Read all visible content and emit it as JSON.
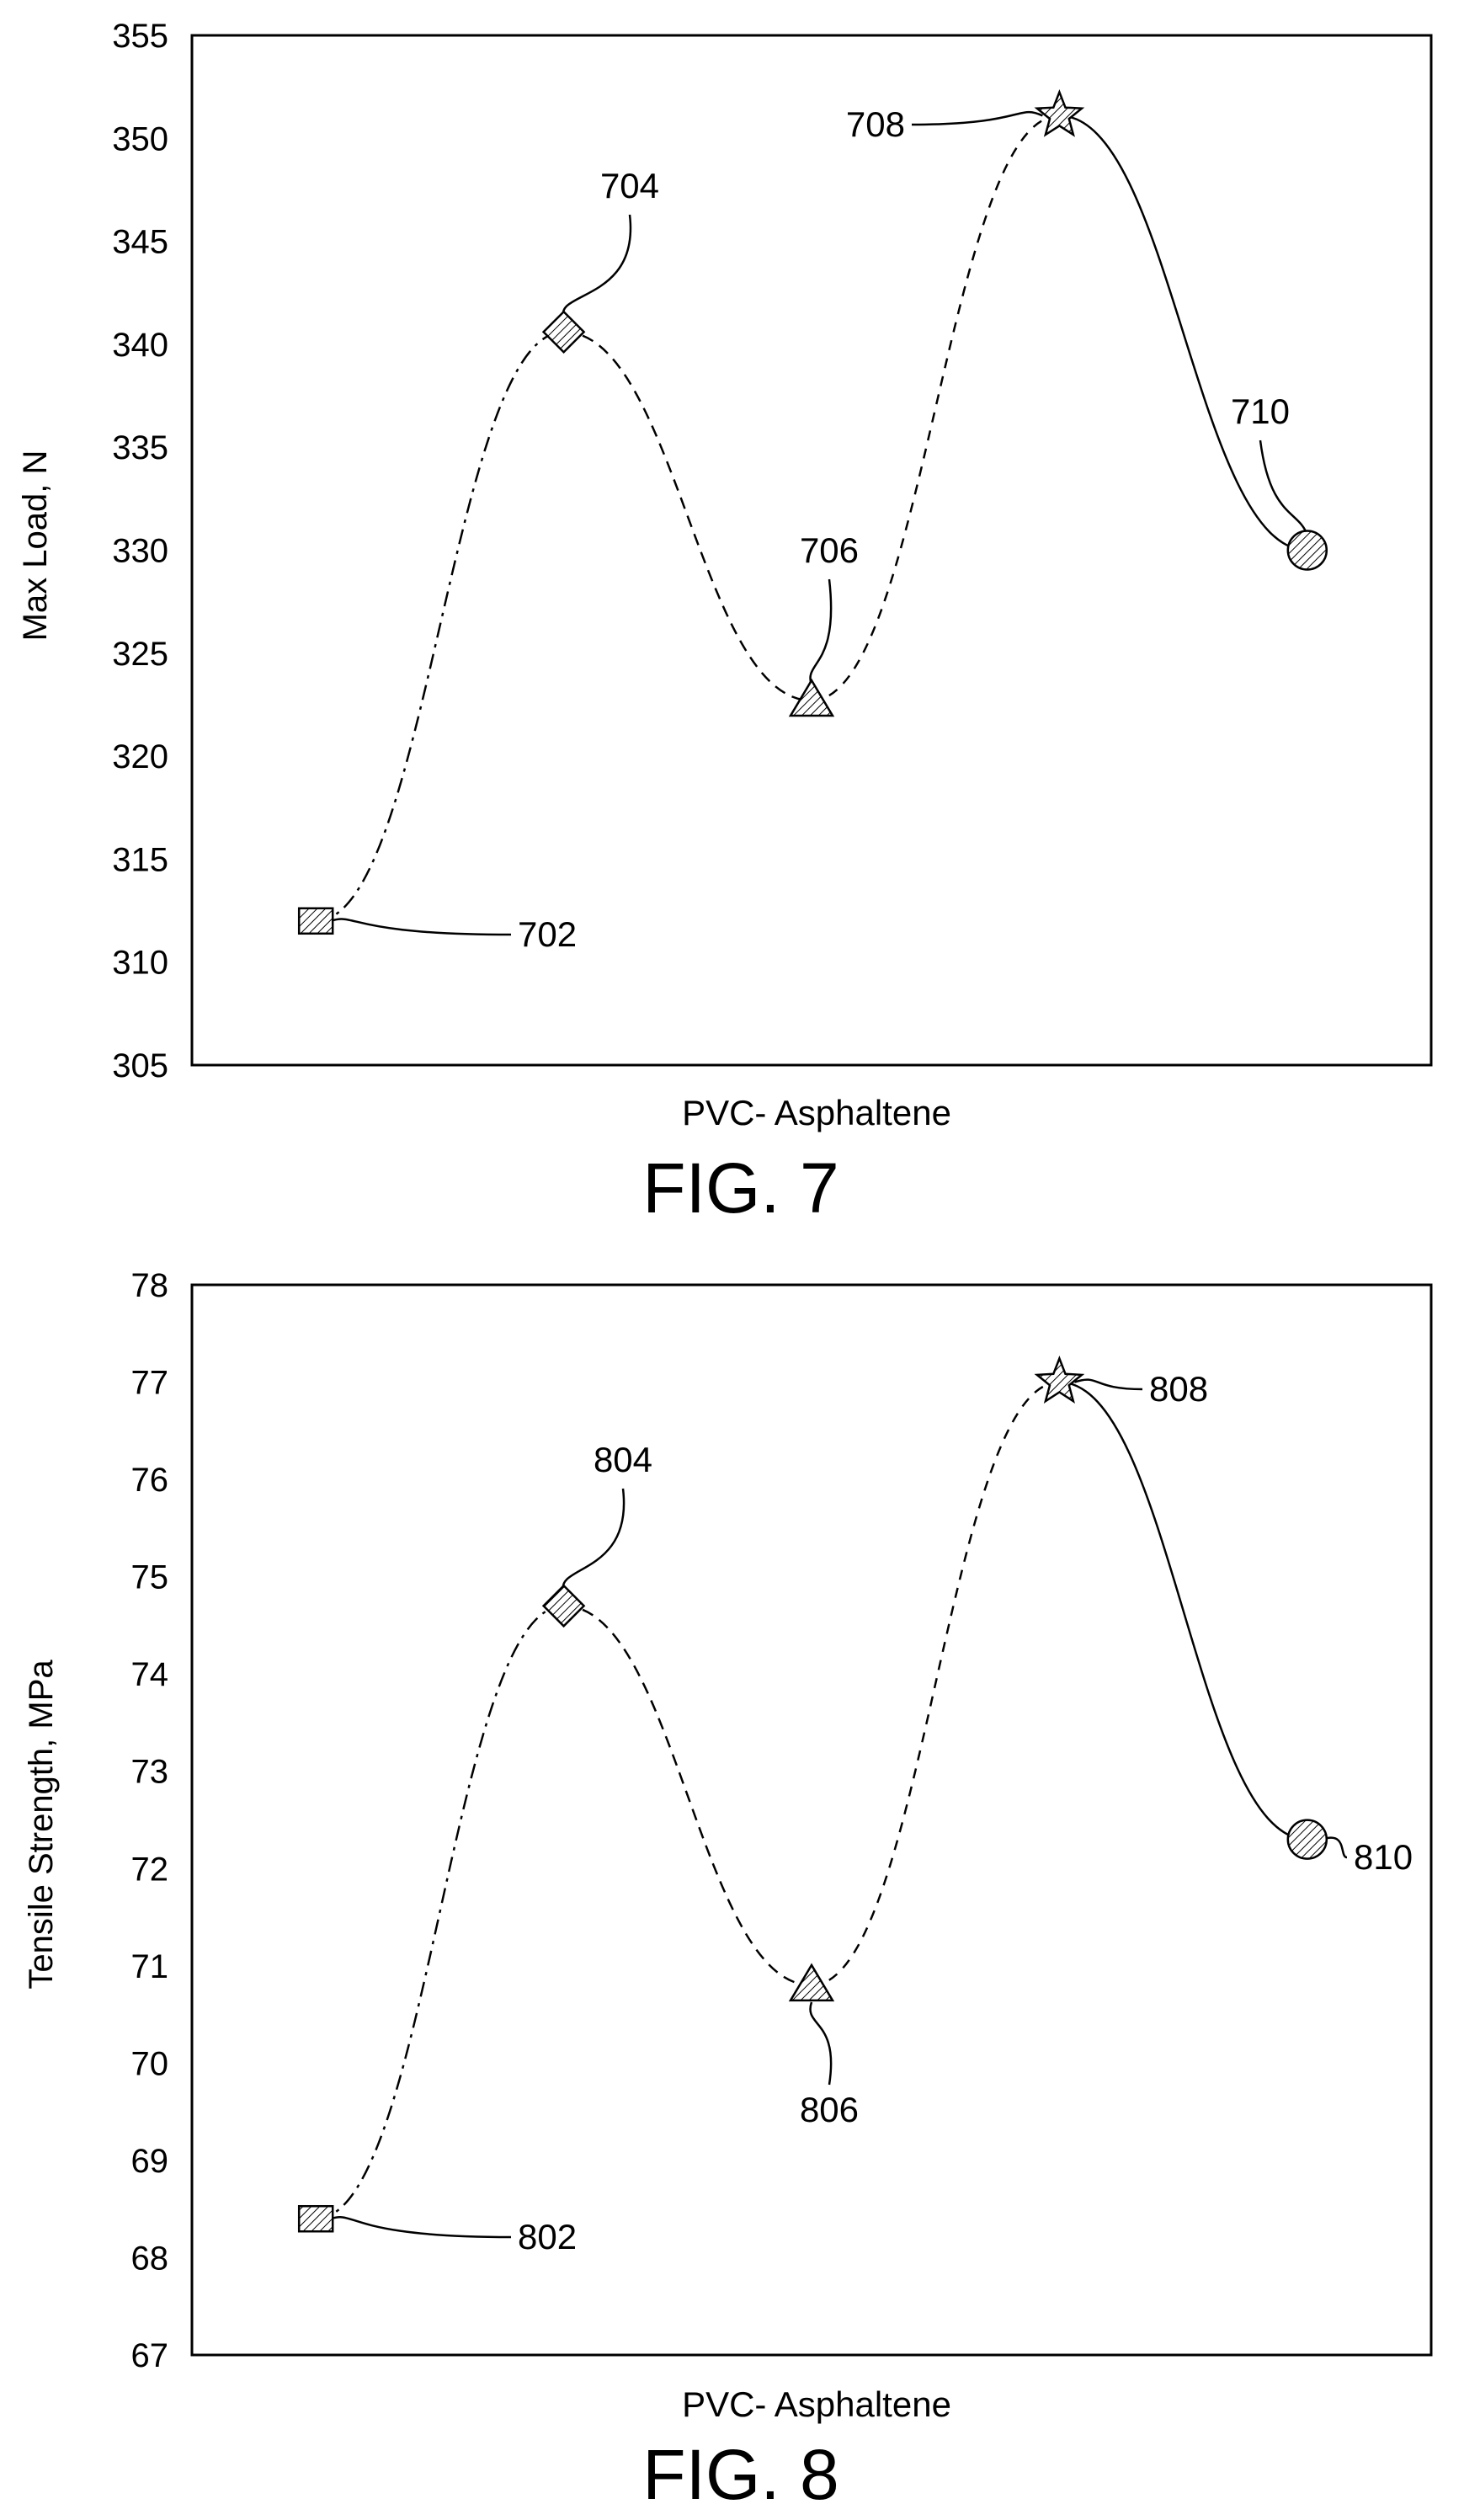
{
  "colors": {
    "ink": "#000000",
    "background": "#ffffff",
    "marker_fill": "#ffffff"
  },
  "chart_data": [
    {
      "type": "line",
      "caption": "FIG. 7",
      "xlabel": "PVC- Asphaltene",
      "ylabel": "Max Load, N",
      "ylim": [
        305,
        355
      ],
      "yticks": [
        305,
        310,
        315,
        320,
        325,
        330,
        335,
        340,
        345,
        350,
        355
      ],
      "grid": false,
      "points": [
        {
          "ref": "702",
          "marker": "square",
          "x": 1,
          "y": 312.0
        },
        {
          "ref": "704",
          "marker": "diamond",
          "x": 2,
          "y": 340.6
        },
        {
          "ref": "706",
          "marker": "triangle",
          "x": 3,
          "y": 322.7
        },
        {
          "ref": "708",
          "marker": "star",
          "x": 4,
          "y": 351.1
        },
        {
          "ref": "710",
          "marker": "circle",
          "x": 5,
          "y": 330.0
        }
      ]
    },
    {
      "type": "line",
      "caption": "FIG. 8",
      "xlabel": "PVC- Asphaltene",
      "ylabel": "Tensile Strength, MPa",
      "ylim": [
        67,
        78
      ],
      "yticks": [
        67,
        68,
        69,
        70,
        71,
        72,
        73,
        74,
        75,
        76,
        77,
        78
      ],
      "grid": false,
      "points": [
        {
          "ref": "802",
          "marker": "square",
          "x": 1,
          "y": 68.4
        },
        {
          "ref": "804",
          "marker": "diamond",
          "x": 2,
          "y": 74.7
        },
        {
          "ref": "806",
          "marker": "triangle",
          "x": 3,
          "y": 70.8
        },
        {
          "ref": "808",
          "marker": "star",
          "x": 4,
          "y": 77.0
        },
        {
          "ref": "810",
          "marker": "circle",
          "x": 5,
          "y": 72.3
        }
      ]
    }
  ]
}
